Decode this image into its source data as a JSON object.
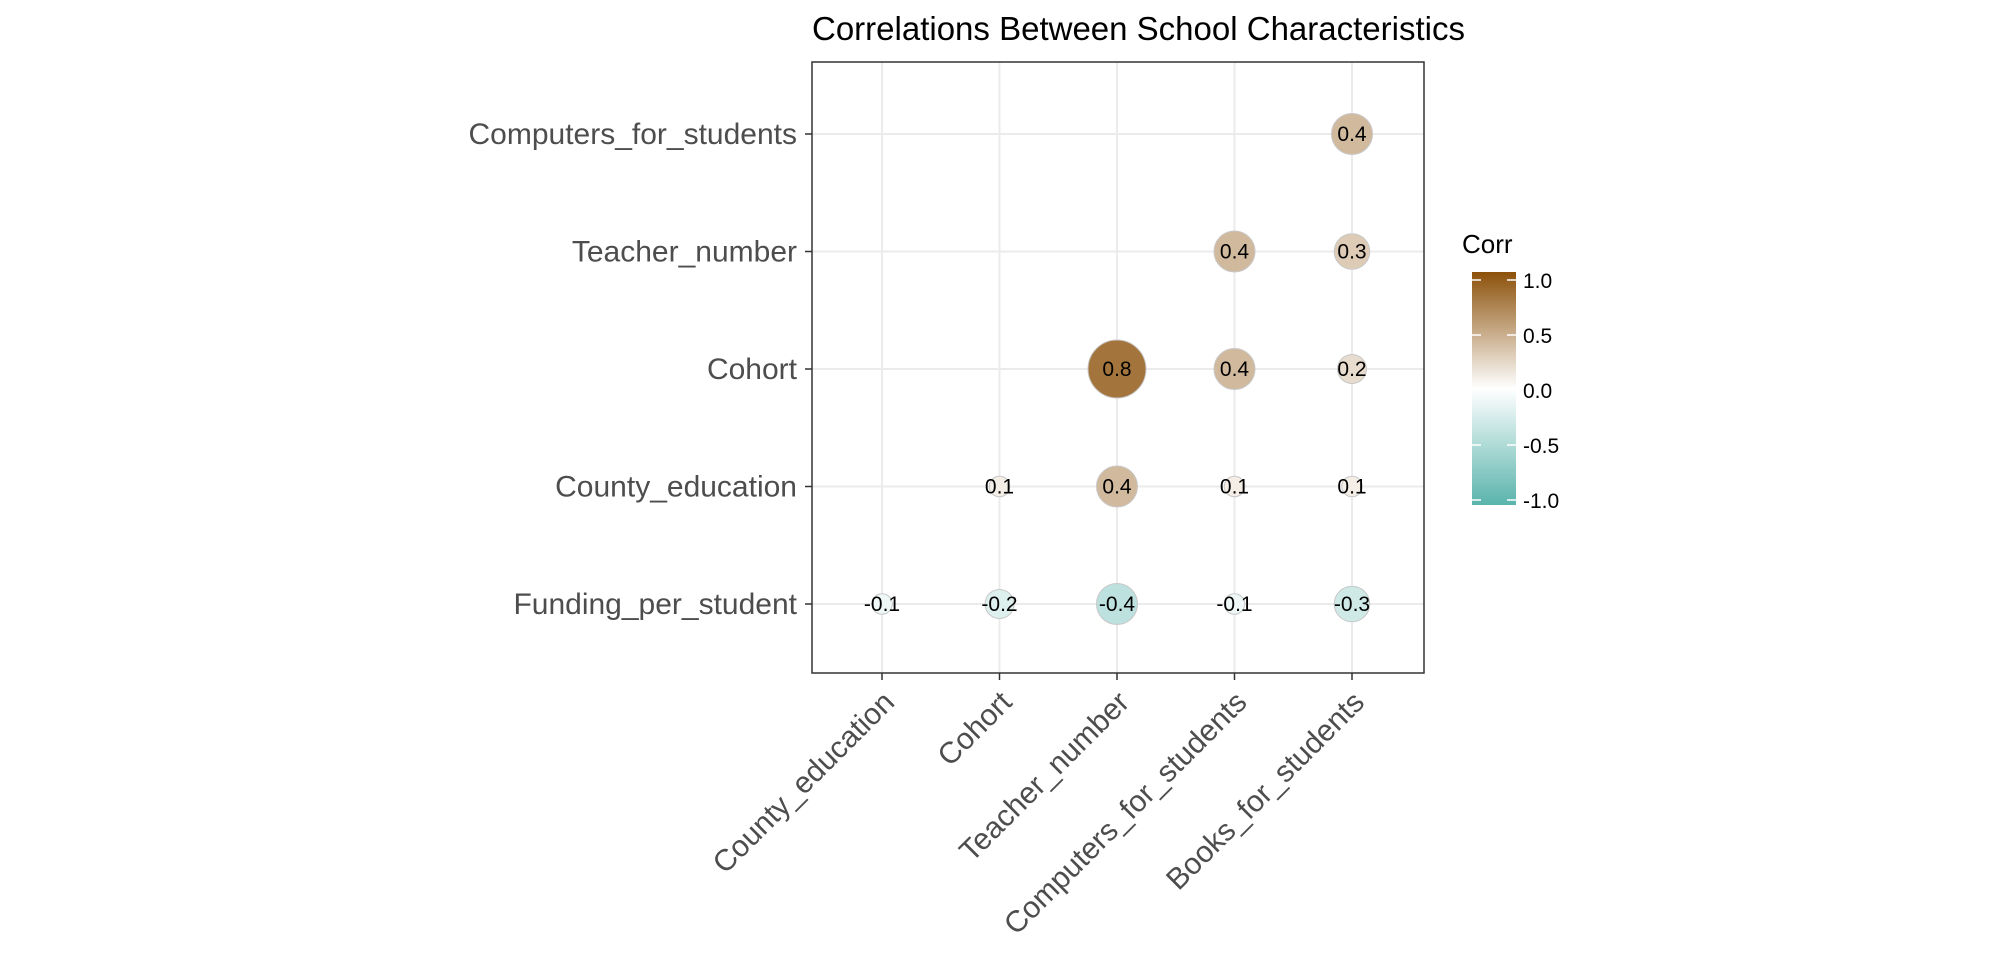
{
  "chart_data": {
    "type": "heatmap",
    "title": "Correlations Between School Characteristics",
    "x_categories": [
      "County_education",
      "Cohort",
      "Teacher_number",
      "Computers_for_students",
      "Books_for_students"
    ],
    "y_categories": [
      "Funding_per_student",
      "County_education",
      "Cohort",
      "Teacher_number",
      "Computers_for_students"
    ],
    "cells": [
      {
        "x": "Books_for_students",
        "y": "Computers_for_students",
        "value": 0.4
      },
      {
        "x": "Computers_for_students",
        "y": "Teacher_number",
        "value": 0.4
      },
      {
        "x": "Books_for_students",
        "y": "Teacher_number",
        "value": 0.3
      },
      {
        "x": "Teacher_number",
        "y": "Cohort",
        "value": 0.8
      },
      {
        "x": "Computers_for_students",
        "y": "Cohort",
        "value": 0.4
      },
      {
        "x": "Books_for_students",
        "y": "Cohort",
        "value": 0.2
      },
      {
        "x": "Cohort",
        "y": "County_education",
        "value": 0.1
      },
      {
        "x": "Teacher_number",
        "y": "County_education",
        "value": 0.4
      },
      {
        "x": "Computers_for_students",
        "y": "County_education",
        "value": 0.1
      },
      {
        "x": "Books_for_students",
        "y": "County_education",
        "value": 0.1
      },
      {
        "x": "County_education",
        "y": "Funding_per_student",
        "value": -0.1
      },
      {
        "x": "Cohort",
        "y": "Funding_per_student",
        "value": -0.2
      },
      {
        "x": "Teacher_number",
        "y": "Funding_per_student",
        "value": -0.4
      },
      {
        "x": "Computers_for_students",
        "y": "Funding_per_student",
        "value": -0.1
      },
      {
        "x": "Books_for_students",
        "y": "Funding_per_student",
        "value": -0.3
      }
    ],
    "legend": {
      "title": "Corr",
      "position": "right",
      "limits": [
        -1,
        1
      ],
      "ticks": [
        "1.0",
        "0.5",
        "0.0",
        "-0.5",
        "-1.0"
      ],
      "colors": {
        "low": "#5ab4ac",
        "mid": "#ffffff",
        "high": "#8c510a"
      }
    },
    "grid": true,
    "grid_color": "#ebebeb"
  }
}
